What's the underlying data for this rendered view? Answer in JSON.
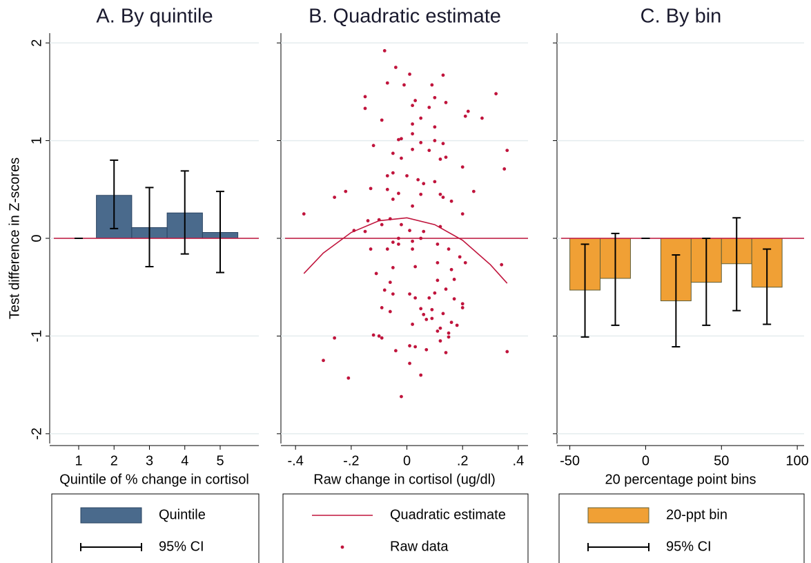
{
  "chart_data": [
    {
      "type": "bar",
      "title": "A. By quintile",
      "ylabel": "Test difference in Z-scores",
      "xlabel": "Quintile of % change in cortisol",
      "x": [
        1,
        2,
        3,
        4,
        5
      ],
      "series": [
        {
          "name": "Quintile",
          "type": "bar",
          "color": "#4a6a8c",
          "edge": "#2b4462",
          "values": [
            0,
            0.44,
            0.11,
            0.26,
            0.06
          ]
        }
      ],
      "ci": {
        "name": "95% CI",
        "color": "#000000",
        "low": [
          0,
          0.1,
          -0.29,
          -0.16,
          -0.35
        ],
        "high": [
          0,
          0.8,
          0.52,
          0.69,
          0.48
        ]
      },
      "xlim": [
        0.2,
        5.8
      ],
      "xticks": [
        1,
        2,
        3,
        4,
        5
      ],
      "ylim": [
        -2.1,
        2.1
      ],
      "yticks": [
        -2,
        -1,
        0,
        1,
        2
      ],
      "grid": true,
      "show_yticklabels": true,
      "reference_line": 0,
      "reference_color": "#c0143c"
    },
    {
      "type": "scatter",
      "title": "B. Quadratic estimate",
      "xlabel": "Raw change in cortisol (ug/dl)",
      "series": [
        {
          "name": "Quadratic estimate",
          "type": "line",
          "color": "#c0143c",
          "x": [
            -0.37,
            -0.3,
            -0.2,
            -0.1,
            0,
            0.1,
            0.2,
            0.3,
            0.36
          ],
          "values": [
            -0.36,
            -0.15,
            0.06,
            0.18,
            0.21,
            0.14,
            -0.02,
            -0.27,
            -0.46
          ]
        },
        {
          "name": "Raw data",
          "type": "scatter",
          "color": "#c0143c",
          "x": [
            -0.08,
            -0.04,
            0.01,
            0.13,
            -0.07,
            -0.01,
            0.09,
            0.32,
            -0.15,
            0.1,
            0.03,
            0.14,
            0.02,
            0.08,
            -0.15,
            0.22,
            0.21,
            0.05,
            0.27,
            -0.09,
            0.02,
            0.1,
            0.02,
            -0.02,
            -0.03,
            0.1,
            0.05,
            -0.12,
            0.13,
            0.02,
            0.36,
            0.08,
            -0.05,
            0.14,
            -0.02,
            0.12,
            0.2,
            0.35,
            -0.05,
            0.0,
            -0.07,
            0.04,
            0.1,
            0.06,
            -0.13,
            -0.07,
            -0.22,
            0.24,
            -0.03,
            0.05,
            0.12,
            0.13,
            -0.26,
            -0.05,
            0.16,
            0.02,
            -0.37,
            0.2,
            -0.1,
            -0.06,
            -0.14,
            -0.02,
            -0.09,
            0.12,
            -0.19,
            -0.15,
            0.01,
            0.06,
            -0.03,
            -0.05,
            0.02,
            -0.03,
            0.05,
            0.11,
            -0.13,
            -0.07,
            0.02,
            0.15,
            0.19,
            0.21,
            0.34,
            0.11,
            -0.05,
            0.03,
            0.16,
            -0.11,
            0.11,
            0.17,
            -0.06,
            0.14,
            -0.08,
            0.1,
            -0.05,
            0.01,
            0.08,
            0.03,
            0.17,
            0.2,
            0.2,
            -0.09,
            0.05,
            -0.06,
            0.09,
            0.06,
            0.13,
            0.09,
            0.07,
            0.16,
            0.02,
            0.18,
            0.12,
            0.11,
            0.15,
            -0.12,
            -0.1,
            -0.26,
            -0.09,
            0.15,
            0.12,
            0.01,
            0.03,
            -0.04,
            0.07,
            0.14,
            0.36,
            -0.3,
            0.01,
            0.05,
            -0.21,
            -0.02
          ],
          "values": [
            1.92,
            1.75,
            1.68,
            1.67,
            1.59,
            1.57,
            1.57,
            1.48,
            1.45,
            1.44,
            1.41,
            1.39,
            1.36,
            1.34,
            1.33,
            1.3,
            1.25,
            1.23,
            1.23,
            1.21,
            1.17,
            1.14,
            1.07,
            1.02,
            1.01,
            1.0,
            0.98,
            0.95,
            0.97,
            0.91,
            0.9,
            0.9,
            0.87,
            0.83,
            0.82,
            0.81,
            0.73,
            0.71,
            0.67,
            0.64,
            0.64,
            0.6,
            0.58,
            0.56,
            0.51,
            0.5,
            0.48,
            0.48,
            0.46,
            0.45,
            0.45,
            0.42,
            0.42,
            0.4,
            0.38,
            0.33,
            0.25,
            0.25,
            0.19,
            0.2,
            0.18,
            0.14,
            0.14,
            0.12,
            0.08,
            0.07,
            0.08,
            0.07,
            0.0,
            -0.04,
            -0.03,
            -0.06,
            0.0,
            -0.06,
            -0.11,
            -0.11,
            -0.11,
            -0.11,
            -0.19,
            -0.25,
            -0.27,
            -0.25,
            -0.3,
            -0.29,
            -0.32,
            -0.36,
            -0.43,
            -0.42,
            -0.45,
            -0.52,
            -0.53,
            -0.56,
            -0.57,
            -0.57,
            -0.61,
            -0.61,
            -0.62,
            -0.67,
            -0.71,
            -0.71,
            -0.72,
            -0.75,
            -0.73,
            -0.78,
            -0.77,
            -0.82,
            -0.83,
            -0.86,
            -0.88,
            -0.89,
            -0.92,
            -0.95,
            -0.97,
            -0.99,
            -1.0,
            -1.02,
            -1.02,
            -1.01,
            -1.05,
            -1.1,
            -1.11,
            -1.15,
            -1.14,
            -1.17,
            -1.16,
            -1.25,
            -1.28,
            -1.4,
            -1.43,
            -1.62
          ]
        }
      ],
      "xlim": [
        -0.45,
        0.435
      ],
      "xticks": [
        {
          "value": -0.4,
          "label": "-.4"
        },
        {
          "value": -0.2,
          "label": "-.2"
        },
        0,
        {
          "value": 0.2,
          "label": ".2"
        },
        {
          "value": 0.4,
          "label": ".4"
        }
      ],
      "ylim": [
        -2.1,
        2.1
      ],
      "yticks": [
        -2,
        -1,
        0,
        1,
        2
      ],
      "grid": true,
      "show_yticklabels": false,
      "reference_line": 0,
      "reference_color": "#c0143c"
    },
    {
      "type": "bar",
      "title": "C. By bin",
      "xlabel": "20 percentage point bins",
      "x": [
        -40,
        -20,
        0,
        20,
        40,
        60,
        80
      ],
      "series": [
        {
          "name": "20-ppt bin",
          "type": "bar",
          "color": "#f0a035",
          "edge": "#5f5f3a",
          "values": [
            -0.53,
            -0.41,
            0,
            -0.64,
            -0.45,
            -0.26,
            -0.5
          ]
        }
      ],
      "ci": {
        "name": "95% CI",
        "color": "#000000",
        "low": [
          -1.01,
          -0.89,
          0,
          -1.11,
          -0.89,
          -0.74,
          -0.88
        ],
        "high": [
          -0.06,
          0.05,
          0,
          -0.17,
          0,
          0.21,
          -0.11
        ]
      },
      "xlim": [
        -58,
        104.5
      ],
      "xticks": [
        -50,
        0,
        50,
        100
      ],
      "ylim": [
        -2.1,
        2.1
      ],
      "yticks": [
        -2,
        -1,
        0,
        1,
        2
      ],
      "grid": true,
      "show_yticklabels": false,
      "reference_line": 0,
      "reference_color": "#c0143c"
    }
  ]
}
